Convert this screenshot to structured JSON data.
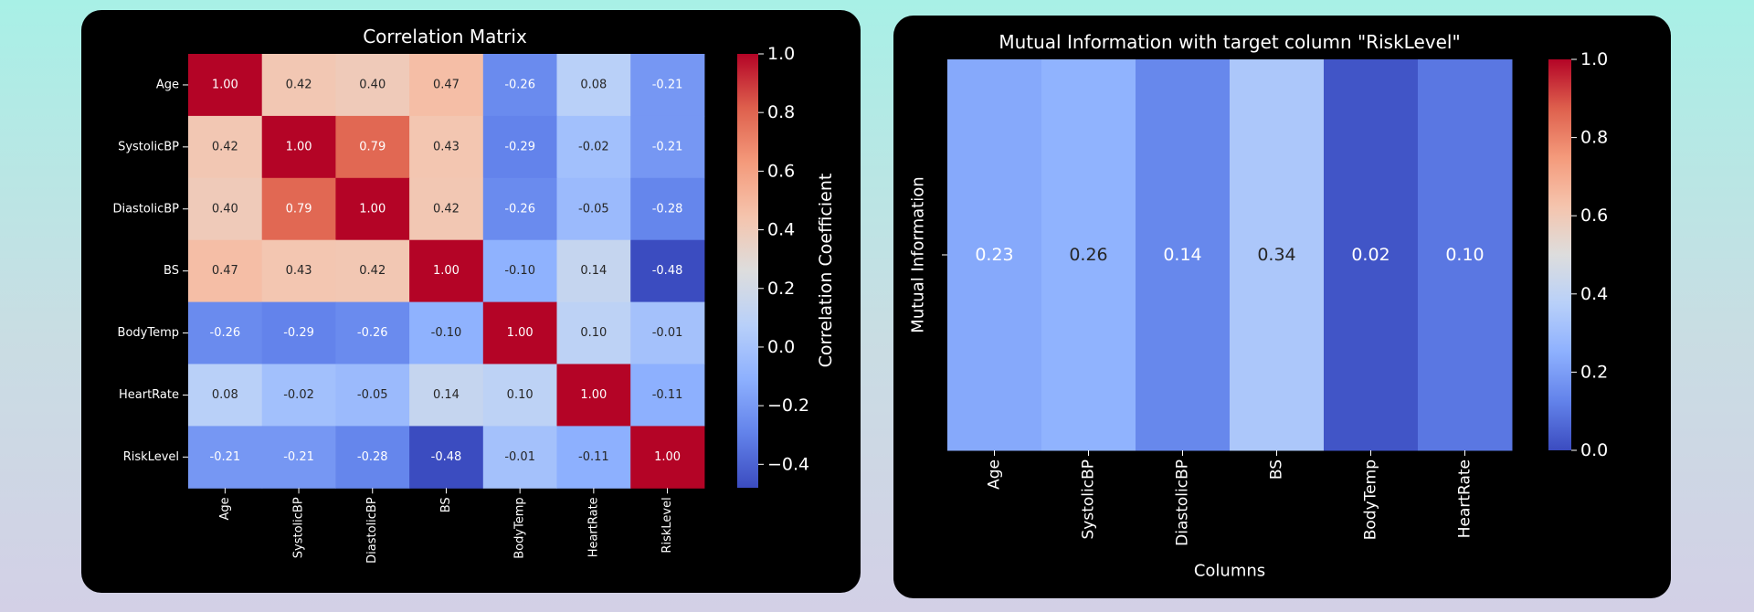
{
  "chart_data": [
    {
      "type": "heatmap",
      "title": "Correlation Matrix",
      "x_categories": [
        "Age",
        "SystolicBP",
        "DiastolicBP",
        "BS",
        "BodyTemp",
        "HeartRate",
        "RiskLevel"
      ],
      "y_categories": [
        "Age",
        "SystolicBP",
        "DiastolicBP",
        "BS",
        "BodyTemp",
        "HeartRate",
        "RiskLevel"
      ],
      "values": [
        [
          1.0,
          0.42,
          0.4,
          0.47,
          -0.26,
          0.08,
          -0.21
        ],
        [
          0.42,
          1.0,
          0.79,
          0.43,
          -0.29,
          -0.02,
          -0.21
        ],
        [
          0.4,
          0.79,
          1.0,
          0.42,
          -0.26,
          -0.05,
          -0.28
        ],
        [
          0.47,
          0.43,
          0.42,
          1.0,
          -0.1,
          0.14,
          -0.48
        ],
        [
          -0.26,
          -0.29,
          -0.26,
          -0.1,
          1.0,
          0.1,
          -0.01
        ],
        [
          0.08,
          -0.02,
          -0.05,
          0.14,
          0.1,
          1.0,
          -0.11
        ],
        [
          -0.21,
          -0.21,
          -0.28,
          -0.48,
          -0.01,
          -0.11,
          1.0
        ]
      ],
      "value_labels": [
        [
          "1.00",
          "0.42",
          "0.40",
          "0.47",
          "-0.26",
          "0.08",
          "-0.21"
        ],
        [
          "0.42",
          "1.00",
          "0.79",
          "0.43",
          "-0.29",
          "-0.02",
          "-0.21"
        ],
        [
          "0.40",
          "0.79",
          "1.00",
          "0.42",
          "-0.26",
          "-0.05",
          "-0.28"
        ],
        [
          "0.47",
          "0.43",
          "0.42",
          "1.00",
          "-0.10",
          "0.14",
          "-0.48"
        ],
        [
          "-0.26",
          "-0.29",
          "-0.26",
          "-0.10",
          "1.00",
          "0.10",
          "-0.01"
        ],
        [
          "0.08",
          "-0.02",
          "-0.05",
          "0.14",
          "0.10",
          "1.00",
          "-0.11"
        ],
        [
          "-0.21",
          "-0.21",
          "-0.28",
          "-0.48",
          "-0.01",
          "-0.11",
          "1.00"
        ]
      ],
      "colormap": "coolwarm",
      "clim": [
        -0.48,
        1.0
      ],
      "cticks": [
        {
          "value": -0.4,
          "label": "−0.4"
        },
        {
          "value": -0.2,
          "label": "−0.2"
        },
        {
          "value": 0.0,
          "label": "0.0"
        },
        0.2,
        0.4,
        0.6,
        0.8,
        {
          "value": 1.0,
          "label": "1.0"
        }
      ],
      "colorbar_label": "Correlation Coefficient"
    },
    {
      "type": "heatmap",
      "title": "Mutual Information with target column \"RiskLevel\"",
      "x_label": "Columns",
      "y_label": "Mutual Information",
      "x_categories": [
        "Age",
        "SystolicBP",
        "DiastolicBP",
        "BS",
        "BodyTemp",
        "HeartRate"
      ],
      "y_categories": [
        null
      ],
      "values": [
        [
          0.23,
          0.26,
          0.14,
          0.34,
          0.02,
          0.1
        ]
      ],
      "value_labels": [
        [
          "0.23",
          "0.26",
          "0.14",
          "0.34",
          "0.02",
          "0.10"
        ]
      ],
      "colormap": "coolwarm",
      "clim": [
        0.0,
        1.0
      ],
      "cticks": [
        {
          "value": 0.0,
          "label": "0.0"
        },
        0.2,
        0.4,
        0.6,
        0.8,
        {
          "value": 1.0,
          "label": "1.0"
        }
      ]
    }
  ]
}
